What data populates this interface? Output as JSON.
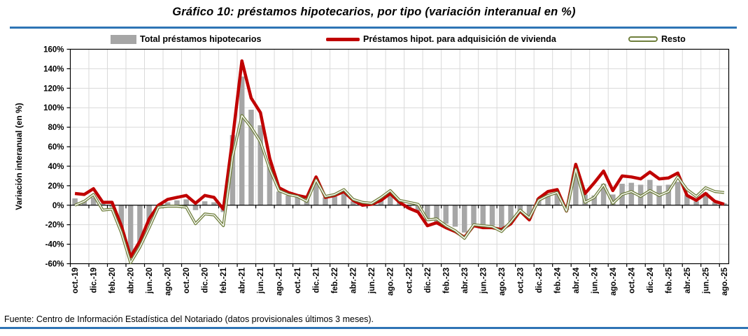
{
  "title": "Gráfico 10: préstamos hipotecarios, por tipo (variación interanual en %)",
  "source": "Fuente: Centro de Información Estadística del Notariado (datos provisionales últimos 3 meses).",
  "accent_rule_color": "#2E74B5",
  "chart_data": {
    "type": "combo",
    "title": "Gráfico 10: préstamos hipotecarios, por tipo (variación interanual en %)",
    "ylabel": "Variación interanual (en %)",
    "ylim": [
      -60,
      160
    ],
    "ytick_step": 20,
    "grid": true,
    "legend_position": "top",
    "y_tick_labels": [
      "160%",
      "140%",
      "120%",
      "100%",
      "80%",
      "60%",
      "40%",
      "20%",
      "0%",
      "-20%",
      "-40%",
      "-60%"
    ],
    "x_labels": [
      "oct.-19",
      "dic.-19",
      "feb.-20",
      "abr.-20",
      "jun.-20",
      "ago.-20",
      "oct.-20",
      "dic.-20",
      "feb.-21",
      "abr.-21",
      "jun.-21",
      "ago.-21",
      "oct.-21",
      "dic.-21",
      "feb.-22",
      "abr.-22",
      "jun.-22",
      "ago.-22",
      "oct.-22",
      "dic.-22",
      "feb.-23",
      "abr.-23",
      "jun.-23",
      "ago.-23",
      "oct.-23",
      "dic.-23",
      "feb.-24",
      "abr.-24",
      "jun.-24",
      "ago.-24",
      "oct.-24",
      "dic.-24",
      "feb.-25",
      "abr.-25",
      "jun.-25",
      "ago.-25"
    ],
    "points_per_label": 2,
    "n_points": 71,
    "series": [
      {
        "name": "Total préstamos hipotecarios",
        "type": "bar",
        "color": "#A6A6A6",
        "values": [
          7,
          5,
          8,
          2,
          -2,
          -25,
          -54,
          -40,
          -20,
          -1,
          3,
          5,
          6,
          -5,
          4,
          3,
          -7,
          72,
          132,
          98,
          82,
          44,
          14,
          10,
          9,
          6,
          26,
          8,
          9,
          12,
          4,
          1,
          1,
          5,
          11,
          3,
          -4,
          -6,
          -16,
          -17,
          -19,
          -22,
          -28,
          -20,
          -21,
          -21,
          -23,
          -17,
          -6,
          -14,
          7,
          11,
          14,
          -5,
          38,
          11,
          10,
          22,
          11,
          22,
          23,
          21,
          26,
          20,
          21,
          24,
          11,
          4,
          13,
          3,
          2
        ]
      },
      {
        "name": "Préstamos hipot. para adquisición de vivienda",
        "type": "line",
        "color": "#C00000",
        "values": [
          12,
          11,
          17,
          3,
          3,
          -21,
          -53,
          -37,
          -14,
          0,
          6,
          8,
          10,
          2,
          10,
          8,
          -4,
          68,
          148,
          110,
          95,
          48,
          18,
          13,
          10,
          8,
          29,
          8,
          10,
          14,
          5,
          0,
          1,
          5,
          12,
          3,
          -3,
          -7,
          -21,
          -18,
          -23,
          -27,
          -33,
          -21,
          -23,
          -23,
          -25,
          -19,
          -6,
          -15,
          7,
          14,
          16,
          -6,
          42,
          12,
          23,
          35,
          15,
          30,
          29,
          27,
          34,
          27,
          28,
          33,
          10,
          5,
          12,
          4,
          1
        ]
      },
      {
        "name": "Resto",
        "type": "line",
        "line_style": "double",
        "color": "#6F7F3C",
        "values": [
          0,
          4,
          11,
          -5,
          -4,
          -28,
          -59,
          -43,
          -23,
          -2,
          -1,
          -1,
          -2,
          -19,
          -9,
          -10,
          -21,
          50,
          92,
          80,
          65,
          37,
          15,
          11,
          9,
          4,
          26,
          9,
          11,
          16,
          6,
          3,
          2,
          8,
          15,
          5,
          3,
          1,
          -15,
          -14,
          -21,
          -26,
          -34,
          -20,
          -21,
          -22,
          -27,
          -17,
          -5,
          -13,
          5,
          10,
          13,
          -6,
          37,
          3,
          8,
          21,
          2,
          11,
          14,
          9,
          15,
          10,
          14,
          29,
          16,
          9,
          18,
          14,
          13
        ]
      }
    ]
  }
}
